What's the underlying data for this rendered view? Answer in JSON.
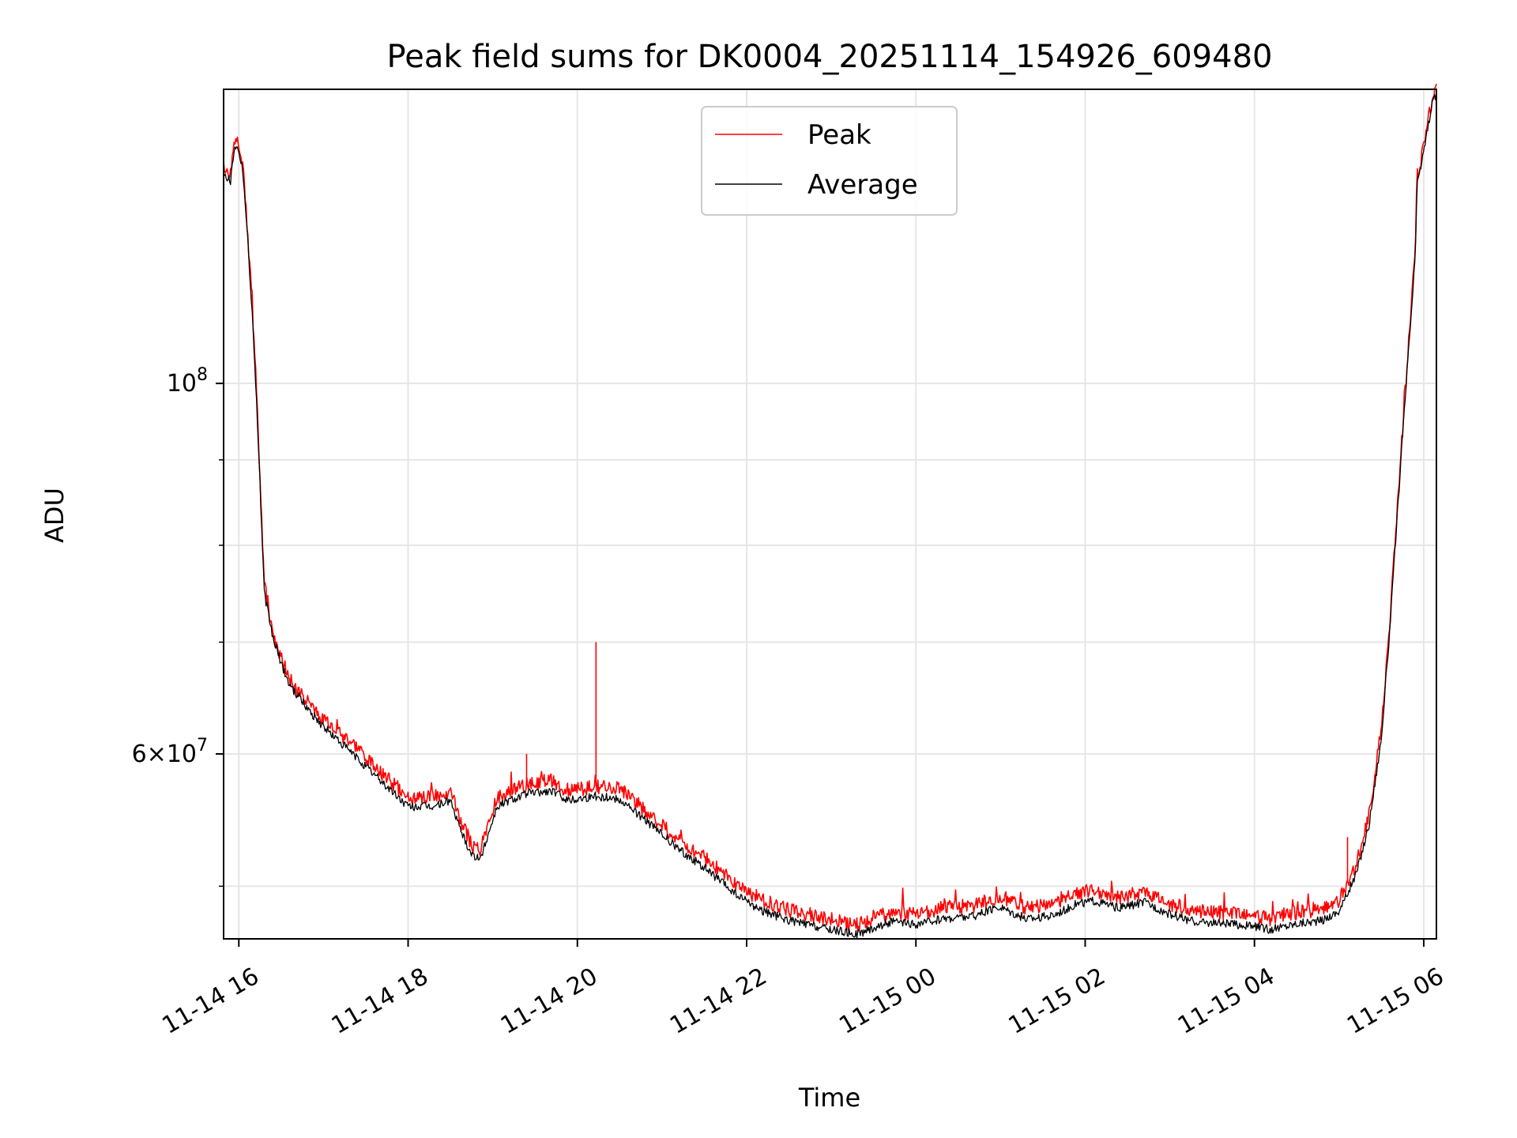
{
  "chart_data": {
    "type": "line",
    "title": "Peak field sums for DK0004_20251114_154926_609480",
    "xlabel": "Time",
    "ylabel": "ADU",
    "yscale": "log",
    "ylim": [
      46500000,
      150000000
    ],
    "xlim_hours": [
      15.82,
      30.15
    ],
    "grid": true,
    "legend_position": "top-center",
    "x_ticks": [
      {
        "hour": 16,
        "label": "11-14 16"
      },
      {
        "hour": 18,
        "label": "11-14 18"
      },
      {
        "hour": 20,
        "label": "11-14 20"
      },
      {
        "hour": 22,
        "label": "11-14 22"
      },
      {
        "hour": 24,
        "label": "11-15 00"
      },
      {
        "hour": 26,
        "label": "11-15 02"
      },
      {
        "hour": 28,
        "label": "11-15 04"
      },
      {
        "hour": 30,
        "label": "11-15 06"
      }
    ],
    "y_major_ticks": [
      {
        "value": 100000000,
        "base": "10",
        "exp": "8",
        "mult": ""
      },
      {
        "value": 60000000,
        "base": "10",
        "exp": "7",
        "mult": "6"
      }
    ],
    "y_minor_ticks": [
      50000000,
      70000000,
      80000000,
      90000000
    ],
    "series": [
      {
        "name": "Peak",
        "color": "#ff0000",
        "hours": [
          15.82,
          15.9,
          15.95,
          16.0,
          16.05,
          16.1,
          16.15,
          16.2,
          16.25,
          16.3,
          16.4,
          16.5,
          16.6,
          16.8,
          17.0,
          17.3,
          17.6,
          18.0,
          18.3,
          18.5,
          18.6,
          18.75,
          18.85,
          18.95,
          19.05,
          19.2,
          19.4,
          19.7,
          19.9,
          20.2,
          20.5,
          20.8,
          21.0,
          21.2,
          21.5,
          21.7,
          21.9,
          22.2,
          22.5,
          22.9,
          23.3,
          23.5,
          23.7,
          24.0,
          24.3,
          24.7,
          25.0,
          25.3,
          25.6,
          25.9,
          26.1,
          26.4,
          26.7,
          27.0,
          27.3,
          27.6,
          28.0,
          28.2,
          28.5,
          28.8,
          29.0,
          29.2,
          29.35,
          29.5,
          29.6,
          29.7,
          29.8,
          29.9,
          29.92,
          29.95,
          29.98,
          30.1,
          30.15
        ],
        "values": [
          135000000,
          133000000,
          140000000,
          139000000,
          135000000,
          124000000,
          113000000,
          101000000,
          88000000,
          76000000,
          71000000,
          68500000,
          66500000,
          64500000,
          63000000,
          61000000,
          59000000,
          56500000,
          56500000,
          57000000,
          55000000,
          53000000,
          52500000,
          54500000,
          56500000,
          57000000,
          57500000,
          57800000,
          57000000,
          57400000,
          57200000,
          55500000,
          54400000,
          53300000,
          52000000,
          51000000,
          50000000,
          49000000,
          48400000,
          47900000,
          47400000,
          47900000,
          48300000,
          48100000,
          48500000,
          48700000,
          49300000,
          48500000,
          48700000,
          49500000,
          49700000,
          49200000,
          49600000,
          48800000,
          48300000,
          48200000,
          48000000,
          47800000,
          48200000,
          48400000,
          49000000,
          51500000,
          55000000,
          62000000,
          72000000,
          86000000,
          102000000,
          120000000,
          133000000,
          135000000,
          137000000,
          148000000,
          150000000
        ]
      },
      {
        "name": "Average",
        "color": "#000000",
        "hours": [
          15.82,
          15.9,
          15.95,
          16.0,
          16.05,
          16.1,
          16.15,
          16.2,
          16.25,
          16.3,
          16.4,
          16.5,
          16.6,
          16.8,
          17.0,
          17.3,
          17.6,
          18.0,
          18.3,
          18.5,
          18.6,
          18.75,
          18.85,
          18.95,
          19.05,
          19.2,
          19.4,
          19.7,
          19.9,
          20.2,
          20.5,
          20.8,
          21.0,
          21.2,
          21.5,
          21.7,
          21.9,
          22.2,
          22.5,
          22.9,
          23.3,
          23.5,
          23.7,
          24.0,
          24.3,
          24.7,
          25.0,
          25.3,
          25.6,
          25.9,
          26.1,
          26.4,
          26.7,
          27.0,
          27.3,
          27.6,
          28.0,
          28.2,
          28.5,
          28.8,
          29.0,
          29.2,
          29.35,
          29.5,
          29.6,
          29.7,
          29.8,
          29.9,
          29.92,
          29.95,
          29.98,
          30.1,
          30.15
        ],
        "values": [
          134000000,
          132000000,
          139000000,
          138000000,
          134000000,
          123000000,
          112000000,
          100000000,
          87000000,
          75000000,
          70500000,
          68000000,
          66000000,
          64000000,
          62300000,
          60300000,
          58300000,
          55800000,
          55800000,
          56300000,
          54300000,
          52300000,
          51800000,
          53800000,
          55800000,
          56300000,
          56800000,
          57000000,
          56300000,
          56600000,
          56400000,
          54800000,
          53700000,
          52600000,
          51300000,
          50300000,
          49300000,
          48300000,
          47700000,
          47200000,
          46800000,
          47200000,
          47600000,
          47400000,
          47800000,
          48000000,
          48600000,
          47800000,
          48000000,
          48800000,
          49000000,
          48500000,
          48900000,
          48100000,
          47600000,
          47500000,
          47300000,
          47100000,
          47500000,
          47700000,
          48300000,
          50800000,
          54300000,
          61300000,
          71300000,
          85300000,
          101000000,
          119000000,
          131000000,
          134000000,
          136000000,
          147000000,
          149000000
        ]
      }
    ],
    "spikes": [
      {
        "hour": 20.22,
        "value": 70000000
      },
      {
        "hour": 19.4,
        "value": 60000000
      },
      {
        "hour": 29.1,
        "value": 53500000
      }
    ],
    "legend": [
      {
        "name": "Peak",
        "color": "#ff0000"
      },
      {
        "name": "Average",
        "color": "#000000"
      }
    ]
  }
}
